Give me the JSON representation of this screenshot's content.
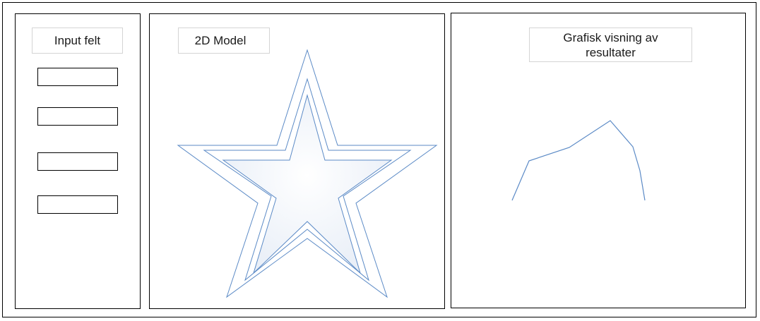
{
  "input_panel": {
    "title": "Input felt",
    "fields": [
      {
        "value": ""
      },
      {
        "value": ""
      },
      {
        "value": ""
      },
      {
        "value": ""
      }
    ]
  },
  "model_panel": {
    "title": "2D Model",
    "shape": "star",
    "outline_color": "#5b8ac6"
  },
  "graph_panel": {
    "title": "Grafisk visning av resultater",
    "line_color": "#5b8ac6"
  }
}
